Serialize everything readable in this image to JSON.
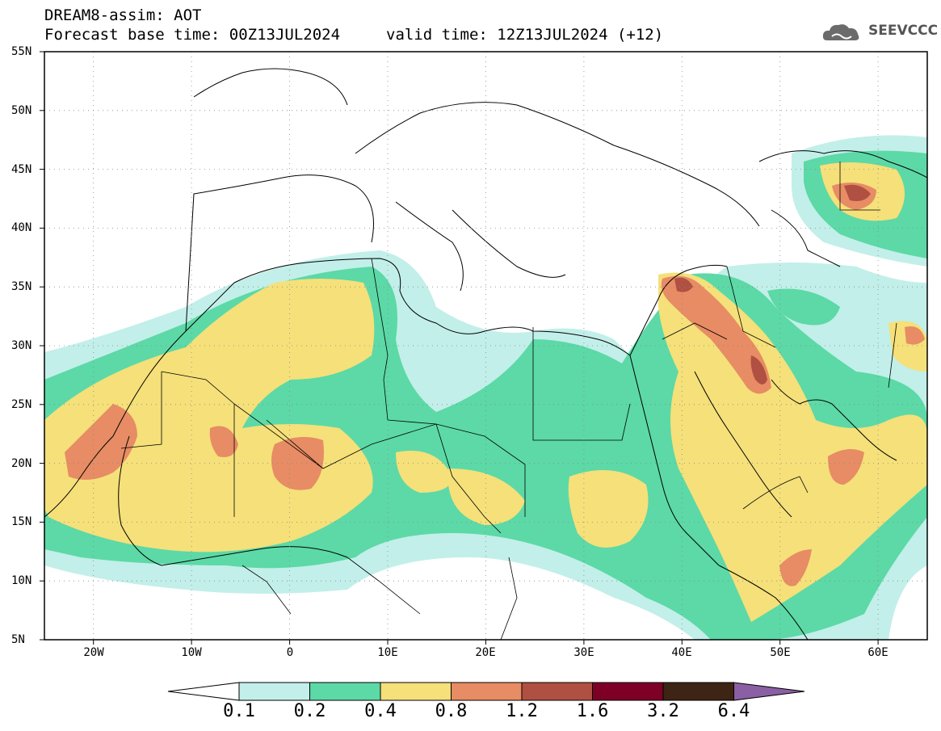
{
  "header": {
    "title": "DREAM8-assim: AOT",
    "base_time": "Forecast base time: 00Z13JUL2024",
    "valid_time": "valid time: 12Z13JUL2024 (+12)"
  },
  "logo": {
    "text": "SEEVCCC",
    "icon": "cloud-icon"
  },
  "axes": {
    "lat_labels": [
      "55N",
      "50N",
      "45N",
      "40N",
      "35N",
      "30N",
      "25N",
      "20N",
      "15N",
      "10N",
      "5N"
    ],
    "lon_labels": [
      "20W",
      "10W",
      "0",
      "10E",
      "20E",
      "30E",
      "40E",
      "50E",
      "60E"
    ],
    "lon_range": [
      -25,
      65
    ],
    "lat_range": [
      5,
      55
    ]
  },
  "colorbar": {
    "labels": [
      "0.1",
      "0.2",
      "0.4",
      "0.8",
      "1.2",
      "1.6",
      "3.2",
      "6.4"
    ],
    "colors": [
      "#ffffff",
      "#c2efe9",
      "#5cd9a6",
      "#f5e07a",
      "#e78c64",
      "#b05042",
      "#7e0026",
      "#3d2414",
      "#8a5fa3"
    ]
  }
}
